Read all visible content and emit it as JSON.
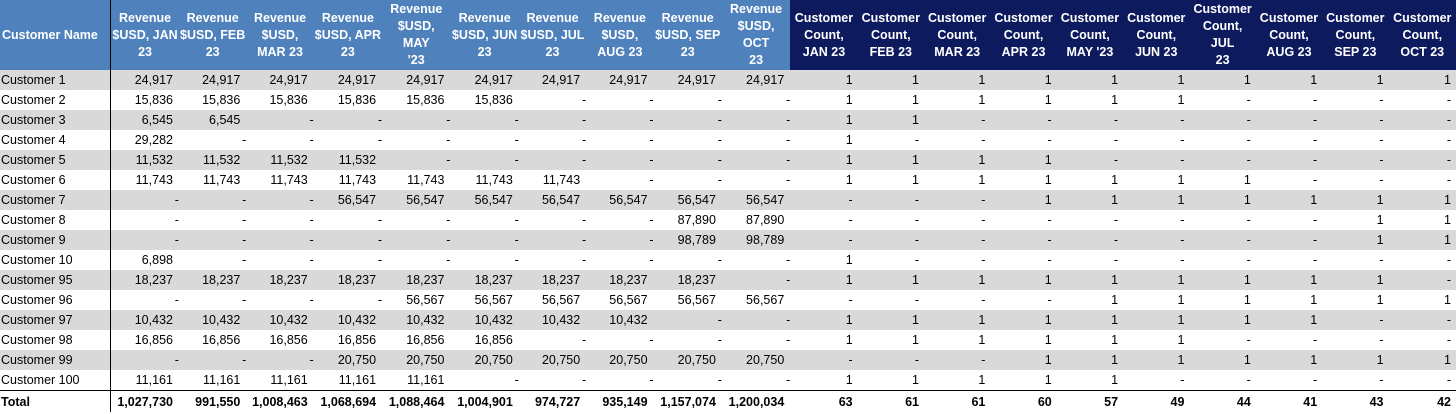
{
  "table": {
    "name_header": "Customer Name",
    "revenue_headers": [
      [
        "Revenue",
        "$USD, JAN",
        "23"
      ],
      [
        "Revenue",
        "$USD, FEB",
        "23"
      ],
      [
        "Revenue",
        "$USD,",
        "MAR 23"
      ],
      [
        "Revenue",
        "$USD, APR",
        "23"
      ],
      [
        "Revenue",
        "$USD, MAY",
        "'23"
      ],
      [
        "Revenue",
        "$USD, JUN",
        "23"
      ],
      [
        "Revenue",
        "$USD, JUL",
        "23"
      ],
      [
        "Revenue",
        "$USD,",
        "AUG 23"
      ],
      [
        "Revenue",
        "$USD, SEP",
        "23"
      ],
      [
        "Revenue",
        "$USD, OCT",
        "23"
      ]
    ],
    "count_headers": [
      [
        "Customer",
        "Count,",
        "JAN 23"
      ],
      [
        "Customer",
        "Count,",
        "FEB 23"
      ],
      [
        "Customer",
        "Count,",
        "MAR 23"
      ],
      [
        "Customer",
        "Count,",
        "APR 23"
      ],
      [
        "Customer",
        "Count,",
        "MAY '23"
      ],
      [
        "Customer",
        "Count,",
        "JUN 23"
      ],
      [
        "Customer",
        "Count, JUL",
        "23"
      ],
      [
        "Customer",
        "Count,",
        "AUG 23"
      ],
      [
        "Customer",
        "Count,",
        "SEP 23"
      ],
      [
        "Customer",
        "Count,",
        "OCT 23"
      ]
    ],
    "rows": [
      {
        "name": "Customer 1",
        "revenue": [
          "24,917",
          "24,917",
          "24,917",
          "24,917",
          "24,917",
          "24,917",
          "24,917",
          "24,917",
          "24,917",
          "24,917"
        ],
        "counts": [
          "1",
          "1",
          "1",
          "1",
          "1",
          "1",
          "1",
          "1",
          "1",
          "1"
        ]
      },
      {
        "name": "Customer 2",
        "revenue": [
          "15,836",
          "15,836",
          "15,836",
          "15,836",
          "15,836",
          "15,836",
          "-",
          "-",
          "-",
          "-"
        ],
        "counts": [
          "1",
          "1",
          "1",
          "1",
          "1",
          "1",
          "-",
          "-",
          "-",
          "-"
        ]
      },
      {
        "name": "Customer 3",
        "revenue": [
          "6,545",
          "6,545",
          "-",
          "-",
          "-",
          "-",
          "-",
          "-",
          "-",
          "-"
        ],
        "counts": [
          "1",
          "1",
          "-",
          "-",
          "-",
          "-",
          "-",
          "-",
          "-",
          "-"
        ]
      },
      {
        "name": "Customer 4",
        "revenue": [
          "29,282",
          "-",
          "-",
          "-",
          "-",
          "-",
          "-",
          "-",
          "-",
          "-"
        ],
        "counts": [
          "1",
          "-",
          "-",
          "-",
          "-",
          "-",
          "-",
          "-",
          "-",
          "-"
        ]
      },
      {
        "name": "Customer 5",
        "revenue": [
          "11,532",
          "11,532",
          "11,532",
          "11,532",
          "-",
          "-",
          "-",
          "-",
          "-",
          "-"
        ],
        "counts": [
          "1",
          "1",
          "1",
          "1",
          "-",
          "-",
          "-",
          "-",
          "-",
          "-"
        ]
      },
      {
        "name": "Customer 6",
        "revenue": [
          "11,743",
          "11,743",
          "11,743",
          "11,743",
          "11,743",
          "11,743",
          "11,743",
          "-",
          "-",
          "-"
        ],
        "counts": [
          "1",
          "1",
          "1",
          "1",
          "1",
          "1",
          "1",
          "-",
          "-",
          "-"
        ]
      },
      {
        "name": "Customer 7",
        "revenue": [
          "-",
          "-",
          "-",
          "56,547",
          "56,547",
          "56,547",
          "56,547",
          "56,547",
          "56,547",
          "56,547"
        ],
        "counts": [
          "-",
          "-",
          "-",
          "1",
          "1",
          "1",
          "1",
          "1",
          "1",
          "1"
        ]
      },
      {
        "name": "Customer 8",
        "revenue": [
          "-",
          "-",
          "-",
          "-",
          "-",
          "-",
          "-",
          "-",
          "87,890",
          "87,890"
        ],
        "counts": [
          "-",
          "-",
          "-",
          "-",
          "-",
          "-",
          "-",
          "-",
          "1",
          "1"
        ]
      },
      {
        "name": "Customer 9",
        "revenue": [
          "-",
          "-",
          "-",
          "-",
          "-",
          "-",
          "-",
          "-",
          "98,789",
          "98,789"
        ],
        "counts": [
          "-",
          "-",
          "-",
          "-",
          "-",
          "-",
          "-",
          "-",
          "1",
          "1"
        ]
      },
      {
        "name": "Customer 10",
        "revenue": [
          "6,898",
          "-",
          "-",
          "-",
          "-",
          "-",
          "-",
          "-",
          "-",
          "-"
        ],
        "counts": [
          "1",
          "-",
          "-",
          "-",
          "-",
          "-",
          "-",
          "-",
          "-",
          "-"
        ]
      },
      {
        "name": "Customer 95",
        "revenue": [
          "18,237",
          "18,237",
          "18,237",
          "18,237",
          "18,237",
          "18,237",
          "18,237",
          "18,237",
          "18,237",
          "-"
        ],
        "counts": [
          "1",
          "1",
          "1",
          "1",
          "1",
          "1",
          "1",
          "1",
          "1",
          "-"
        ]
      },
      {
        "name": "Customer 96",
        "revenue": [
          "-",
          "-",
          "-",
          "-",
          "56,567",
          "56,567",
          "56,567",
          "56,567",
          "56,567",
          "56,567"
        ],
        "counts": [
          "-",
          "-",
          "-",
          "-",
          "1",
          "1",
          "1",
          "1",
          "1",
          "1"
        ]
      },
      {
        "name": "Customer 97",
        "revenue": [
          "10,432",
          "10,432",
          "10,432",
          "10,432",
          "10,432",
          "10,432",
          "10,432",
          "10,432",
          "-",
          "-"
        ],
        "counts": [
          "1",
          "1",
          "1",
          "1",
          "1",
          "1",
          "1",
          "1",
          "-",
          "-"
        ]
      },
      {
        "name": "Customer 98",
        "revenue": [
          "16,856",
          "16,856",
          "16,856",
          "16,856",
          "16,856",
          "16,856",
          "-",
          "-",
          "-",
          "-"
        ],
        "counts": [
          "1",
          "1",
          "1",
          "1",
          "1",
          "1",
          "-",
          "-",
          "-",
          "-"
        ]
      },
      {
        "name": "Customer 99",
        "revenue": [
          "-",
          "-",
          "-",
          "20,750",
          "20,750",
          "20,750",
          "20,750",
          "20,750",
          "20,750",
          "20,750"
        ],
        "counts": [
          "-",
          "-",
          "-",
          "1",
          "1",
          "1",
          "1",
          "1",
          "1",
          "1"
        ]
      },
      {
        "name": "Customer 100",
        "revenue": [
          "11,161",
          "11,161",
          "11,161",
          "11,161",
          "11,161",
          "-",
          "-",
          "-",
          "-",
          "-"
        ],
        "counts": [
          "1",
          "1",
          "1",
          "1",
          "1",
          "-",
          "-",
          "-",
          "-",
          "-"
        ]
      }
    ],
    "total": {
      "label": "Total",
      "revenue": [
        "1,027,730",
        "991,550",
        "1,008,463",
        "1,068,694",
        "1,088,464",
        "1,004,901",
        "974,727",
        "935,149",
        "1,157,074",
        "1,200,034"
      ],
      "counts": [
        "63",
        "61",
        "61",
        "60",
        "57",
        "49",
        "44",
        "41",
        "43",
        "42"
      ]
    },
    "colors": {
      "revenue_header_bg": "#4f81bd",
      "count_header_bg": "#0d1a5e",
      "band_gray": "#d9d9d9"
    }
  }
}
